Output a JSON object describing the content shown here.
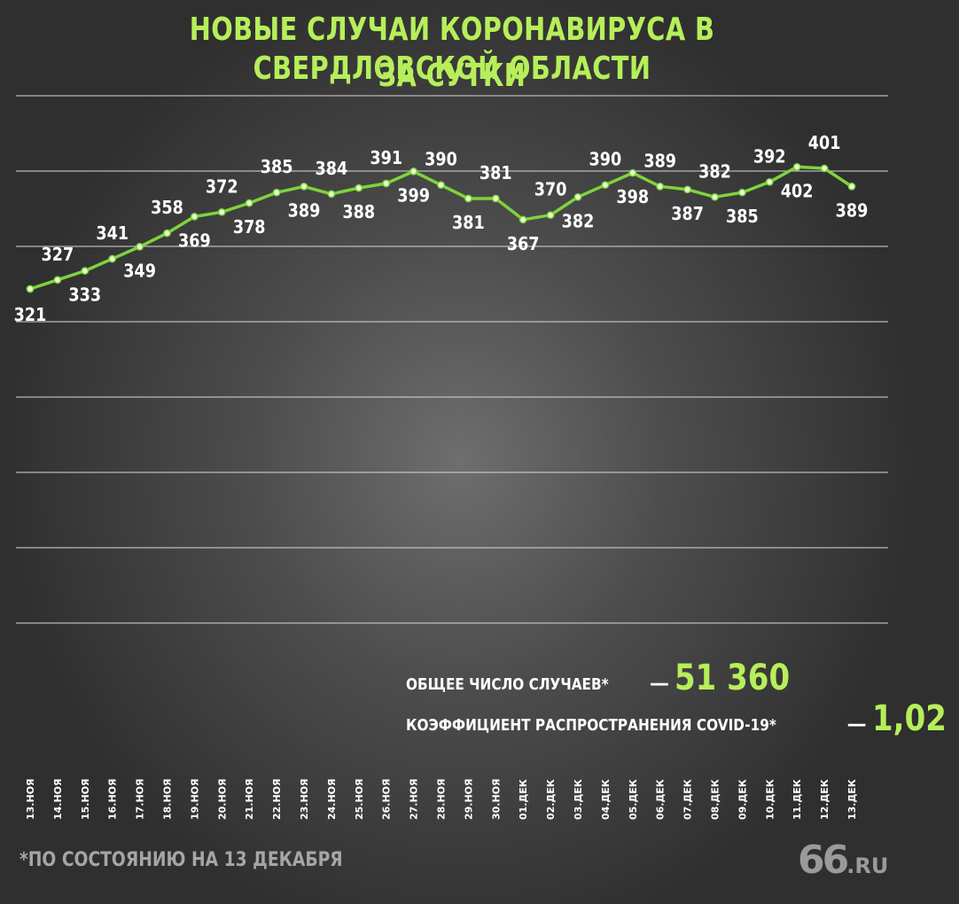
{
  "header": {
    "title_line1": "НОВЫЕ СЛУЧАИ КОРОНАВИРУСА В СВЕРДЛОВСКОЙ ОБЛАСТИ",
    "title_line2": "ЗА СУТКИ"
  },
  "stats": {
    "total_label": "ОБЩЕЕ ЧИСЛО СЛУЧАЕВ*",
    "total_value": "51 360",
    "coef_label": "КОЭФФИЦИЕНТ РАСПРОСТРАНЕНИЯ COVID-19*",
    "coef_value": "1,02",
    "dash": "—"
  },
  "footnote": "*ПО СОСТОЯНИЮ НА 13 ДЕКАБРЯ",
  "logo": {
    "big": "66",
    "small": ".RU"
  },
  "colors": {
    "accent": "#b6ef5a",
    "line": "#7ed43c",
    "grid": "#d9d9d9",
    "text": "#ffffff"
  },
  "chart_data": {
    "type": "line",
    "title": "НОВЫЕ СЛУЧАИ КОРОНАВИРУСА В СВЕРДЛОВСКОЙ ОБЛАСТИ ЗА СУТКИ",
    "xlabel": "",
    "ylabel": "",
    "grid": true,
    "ylim": [
      300,
      410
    ],
    "categories": [
      "13.НОЯ",
      "14.НОЯ",
      "15.НОЯ",
      "16.НОЯ",
      "17.НОЯ",
      "18.НОЯ",
      "19.НОЯ",
      "20.НОЯ",
      "21.НОЯ",
      "22.НОЯ",
      "23.НОЯ",
      "24.НОЯ",
      "25.НОЯ",
      "26.НОЯ",
      "27.НОЯ",
      "28.НОЯ",
      "29.НОЯ",
      "30.НОЯ",
      "01.ДЕК",
      "02.ДЕК",
      "03.ДЕК",
      "04.ДЕК",
      "05.ДЕК",
      "06.ДЕК",
      "07.ДЕК",
      "08.ДЕК",
      "09.ДЕК",
      "10.ДЕК",
      "11.ДЕК",
      "12.ДЕК",
      "13.ДЕК"
    ],
    "series": [
      {
        "values": [
          321,
          327,
          333,
          341,
          349,
          358,
          369,
          372,
          378,
          385,
          389,
          384,
          388,
          391,
          399,
          390,
          381,
          381,
          367,
          370,
          382,
          390,
          398,
          389,
          387,
          382,
          385,
          392,
          402,
          401,
          389
        ]
      }
    ]
  }
}
